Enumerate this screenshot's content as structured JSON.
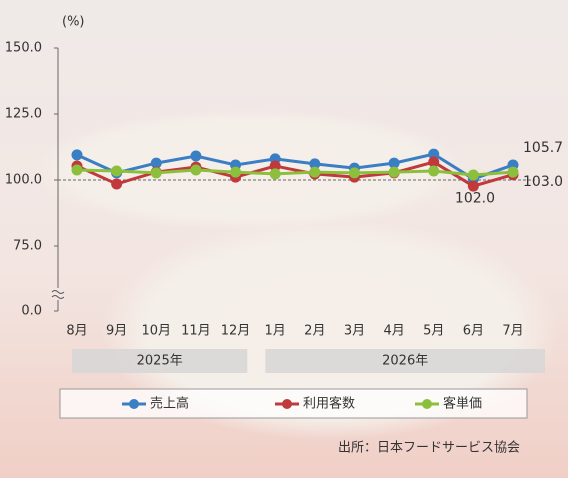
{
  "chart_data": {
    "type": "line",
    "unit_label": "(%)",
    "categories": [
      "8月",
      "9月",
      "10月",
      "11月",
      "12月",
      "1月",
      "2月",
      "3月",
      "4月",
      "5月",
      "6月",
      "7月"
    ],
    "group_labels": [
      "2025年",
      "2026年"
    ],
    "series": [
      {
        "name": "売上高",
        "color": "#3a7ec4",
        "values": [
          109.5,
          102.7,
          106.4,
          109.1,
          105.7,
          108.0,
          106.1,
          104.5,
          106.4,
          109.8,
          100.4,
          105.7
        ],
        "end_label": "105.7"
      },
      {
        "name": "利用客数",
        "color": "#c0393b",
        "values": [
          105.3,
          98.5,
          103.0,
          104.9,
          101.1,
          105.3,
          102.3,
          101.1,
          102.7,
          106.8,
          97.7,
          102.0
        ],
        "end_label": "102.0"
      },
      {
        "name": "客単価",
        "color": "#8bbf3c",
        "values": [
          103.8,
          103.4,
          102.7,
          103.8,
          103.0,
          102.3,
          103.0,
          102.7,
          103.0,
          103.4,
          101.9,
          103.0
        ],
        "end_label": "103.0"
      }
    ],
    "ylim": [
      0,
      150
    ],
    "axis_break": [
      0,
      75
    ],
    "yticks": [
      {
        "value": 0,
        "label": "0.0"
      },
      {
        "value": 75,
        "label": "75.0"
      },
      {
        "value": 100,
        "label": "100.0"
      },
      {
        "value": 125,
        "label": "125.0"
      },
      {
        "value": 150,
        "label": "150.0"
      }
    ],
    "reference_line": 100,
    "source": "出所：日本フードサービス協会"
  }
}
